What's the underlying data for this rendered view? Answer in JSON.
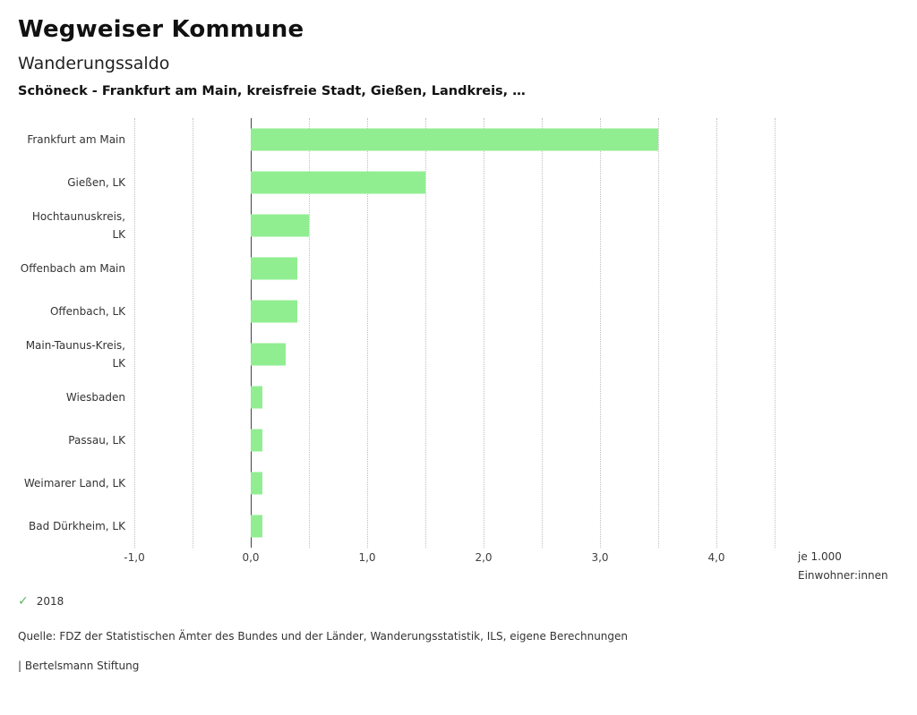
{
  "header": {
    "title": "Wegweiser Kommune",
    "subtitle": "Wanderungssaldo",
    "description": "Schöneck - Frankfurt am Main, kreisfreie Stadt, Gießen, Landkreis, …"
  },
  "chart_data": {
    "type": "bar",
    "orientation": "horizontal",
    "title": "Wanderungssaldo",
    "categories": [
      "Frankfurt am Main",
      "Gießen, LK",
      "Hochtaunuskreis, LK",
      "Offenbach am Main",
      "Offenbach, LK",
      "Main-Taunus-Kreis, LK",
      "Wiesbaden",
      "Passau, LK",
      "Weimarer Land, LK",
      "Bad Dürkheim, LK"
    ],
    "series": [
      {
        "name": "2018",
        "values": [
          3.5,
          1.5,
          0.5,
          0.4,
          0.4,
          0.3,
          0.1,
          0.1,
          0.1,
          0.1
        ]
      }
    ],
    "xlim": [
      -1.0,
      4.5
    ],
    "x_ticks": [
      -1.0,
      0.0,
      1.0,
      2.0,
      3.0,
      4.0
    ],
    "x_tick_labels": [
      "-1,0",
      "0,0",
      "1,0",
      "2,0",
      "3,0",
      "4,0"
    ],
    "gridline_step": 0.5,
    "grid": "dotted-vertical",
    "bar_color": "#90ee90",
    "zero_line_color": "#444444",
    "legend_position": "bottom-left",
    "xlabel": "je 1.000 Einwohner:innen"
  },
  "axis": {
    "unit_line1": "je 1.000",
    "unit_line2": "Einwohner:innen"
  },
  "legend": {
    "marker": "check",
    "marker_color": "#5cb85c",
    "label": "2018"
  },
  "footer": {
    "source": "Quelle: FDZ der Statistischen Ämter des Bundes und der Länder, Wanderungsstatistik, ILS, eigene Berechnungen",
    "attribution": "| Bertelsmann Stiftung"
  }
}
